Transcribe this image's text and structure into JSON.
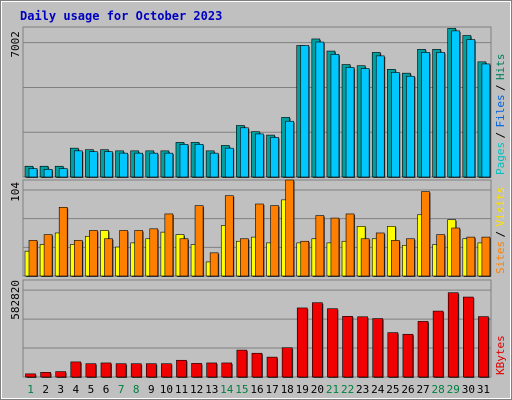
{
  "chart_data": [
    {
      "type": "bar",
      "title": "Daily usage for October 2023",
      "categories": [
        "1",
        "2",
        "3",
        "4",
        "5",
        "6",
        "7",
        "8",
        "9",
        "10",
        "11",
        "12",
        "13",
        "14",
        "15",
        "16",
        "17",
        "18",
        "19",
        "20",
        "21",
        "22",
        "23",
        "24",
        "25",
        "26",
        "27",
        "28",
        "29",
        "30",
        "31"
      ],
      "weekend_days": [
        "1",
        "7",
        "8",
        "14",
        "15",
        "21",
        "22",
        "28",
        "29"
      ],
      "ymax_label": "7002",
      "ylim": [
        0,
        7802
      ],
      "legend": [
        {
          "label": "Pages",
          "color": "#00c0c0"
        },
        {
          "label": "Files",
          "color": "#0060e0"
        },
        {
          "label": "Hits",
          "color": "#008060"
        }
      ],
      "series": [
        {
          "name": "Hits",
          "color": "#00a0a0",
          "values": [
            560,
            560,
            560,
            1500,
            1420,
            1420,
            1360,
            1360,
            1360,
            1360,
            1800,
            1800,
            1360,
            1640,
            2680,
            2360,
            2180,
            3100,
            6840,
            7180,
            6550,
            5850,
            5790,
            6480,
            5600,
            5400,
            6640,
            6640,
            7730,
            7360,
            5990
          ]
        },
        {
          "name": "Files",
          "color": "#00c8ff",
          "values": [
            440,
            400,
            440,
            1360,
            1320,
            1320,
            1240,
            1240,
            1240,
            1240,
            1700,
            1700,
            1240,
            1500,
            2560,
            2240,
            2060,
            2900,
            6840,
            7020,
            6380,
            5700,
            5640,
            6300,
            5440,
            5240,
            6480,
            6480,
            7600,
            7150,
            5880
          ]
        }
      ]
    },
    {
      "type": "bar",
      "ymax_label": "104",
      "ylim": [
        0,
        116
      ],
      "legend": [
        {
          "label": "Sites",
          "color": "#ff8000"
        },
        {
          "label": "Visits",
          "color": "#ffe000"
        }
      ],
      "series": [
        {
          "name": "Visits",
          "color": "#ffff00",
          "values": [
            30,
            38,
            52,
            38,
            48,
            55,
            35,
            40,
            45,
            53,
            50,
            38,
            17,
            61,
            42,
            47,
            40,
            92,
            40,
            45,
            40,
            42,
            60,
            45,
            60,
            37,
            74,
            38,
            68,
            45,
            40
          ]
        },
        {
          "name": "Sites",
          "color": "#ff8000",
          "values": [
            43,
            50,
            83,
            43,
            55,
            45,
            55,
            55,
            57,
            75,
            45,
            85,
            28,
            97,
            45,
            87,
            85,
            116,
            42,
            73,
            70,
            75,
            45,
            52,
            43,
            45,
            102,
            50,
            58,
            47,
            47
          ]
        }
      ]
    },
    {
      "type": "bar",
      "ymax_label": "582820",
      "ylim": [
        0,
        649000
      ],
      "legend": [
        {
          "label": "KBytes",
          "color": "#e00000"
        }
      ],
      "series": [
        {
          "name": "KBytes",
          "color": "#f00000",
          "values": [
            21000,
            31000,
            36000,
            101000,
            89000,
            94000,
            89000,
            89000,
            89000,
            89000,
            112000,
            91000,
            94000,
            94000,
            180000,
            159000,
            133000,
            196000,
            462000,
            497000,
            457000,
            406000,
            403000,
            391000,
            297000,
            286000,
            372000,
            441000,
            564000,
            535000,
            404000
          ]
        }
      ]
    }
  ]
}
